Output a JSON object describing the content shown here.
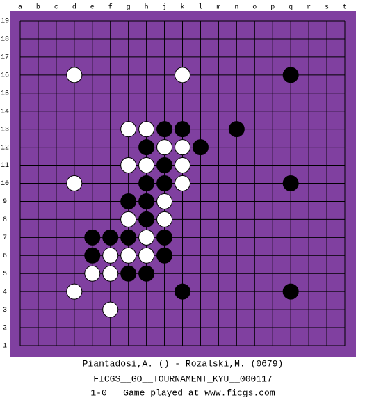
{
  "board": {
    "columns": [
      "a",
      "b",
      "c",
      "d",
      "e",
      "f",
      "g",
      "h",
      "j",
      "k",
      "l",
      "m",
      "n",
      "o",
      "p",
      "q",
      "r",
      "s",
      "t"
    ],
    "rows": [
      19,
      18,
      17,
      16,
      15,
      14,
      13,
      12,
      11,
      10,
      9,
      8,
      7,
      6,
      5,
      4,
      3,
      2,
      1
    ],
    "stones": [
      {
        "col": "d",
        "row": 16,
        "color": "white"
      },
      {
        "col": "k",
        "row": 16,
        "color": "white"
      },
      {
        "col": "q",
        "row": 16,
        "color": "black"
      },
      {
        "col": "g",
        "row": 13,
        "color": "white"
      },
      {
        "col": "h",
        "row": 13,
        "color": "white"
      },
      {
        "col": "j",
        "row": 13,
        "color": "black"
      },
      {
        "col": "k",
        "row": 13,
        "color": "black"
      },
      {
        "col": "n",
        "row": 13,
        "color": "black"
      },
      {
        "col": "h",
        "row": 12,
        "color": "black"
      },
      {
        "col": "j",
        "row": 12,
        "color": "white"
      },
      {
        "col": "k",
        "row": 12,
        "color": "white"
      },
      {
        "col": "l",
        "row": 12,
        "color": "black"
      },
      {
        "col": "g",
        "row": 11,
        "color": "white"
      },
      {
        "col": "h",
        "row": 11,
        "color": "white"
      },
      {
        "col": "j",
        "row": 11,
        "color": "black"
      },
      {
        "col": "k",
        "row": 11,
        "color": "white"
      },
      {
        "col": "d",
        "row": 10,
        "color": "white"
      },
      {
        "col": "h",
        "row": 10,
        "color": "black"
      },
      {
        "col": "j",
        "row": 10,
        "color": "black"
      },
      {
        "col": "k",
        "row": 10,
        "color": "white"
      },
      {
        "col": "q",
        "row": 10,
        "color": "black"
      },
      {
        "col": "g",
        "row": 9,
        "color": "black"
      },
      {
        "col": "h",
        "row": 9,
        "color": "black"
      },
      {
        "col": "j",
        "row": 9,
        "color": "white"
      },
      {
        "col": "g",
        "row": 8,
        "color": "white"
      },
      {
        "col": "h",
        "row": 8,
        "color": "black"
      },
      {
        "col": "j",
        "row": 8,
        "color": "white"
      },
      {
        "col": "e",
        "row": 7,
        "color": "black"
      },
      {
        "col": "f",
        "row": 7,
        "color": "black"
      },
      {
        "col": "g",
        "row": 7,
        "color": "black"
      },
      {
        "col": "h",
        "row": 7,
        "color": "white"
      },
      {
        "col": "j",
        "row": 7,
        "color": "black"
      },
      {
        "col": "e",
        "row": 6,
        "color": "black"
      },
      {
        "col": "f",
        "row": 6,
        "color": "white"
      },
      {
        "col": "g",
        "row": 6,
        "color": "white"
      },
      {
        "col": "h",
        "row": 6,
        "color": "white"
      },
      {
        "col": "j",
        "row": 6,
        "color": "black"
      },
      {
        "col": "e",
        "row": 5,
        "color": "white"
      },
      {
        "col": "f",
        "row": 5,
        "color": "white"
      },
      {
        "col": "g",
        "row": 5,
        "color": "black"
      },
      {
        "col": "h",
        "row": 5,
        "color": "black"
      },
      {
        "col": "d",
        "row": 4,
        "color": "white"
      },
      {
        "col": "k",
        "row": 4,
        "color": "black"
      },
      {
        "col": "q",
        "row": 4,
        "color": "black"
      },
      {
        "col": "f",
        "row": 3,
        "color": "white"
      }
    ]
  },
  "caption": [
    "Piantadosi,A. () - Rozalski,M. (0679)",
    "FICGS__GO__TOURNAMENT_KYU__000117",
    "1-0   Game played at www.ficgs.com"
  ]
}
